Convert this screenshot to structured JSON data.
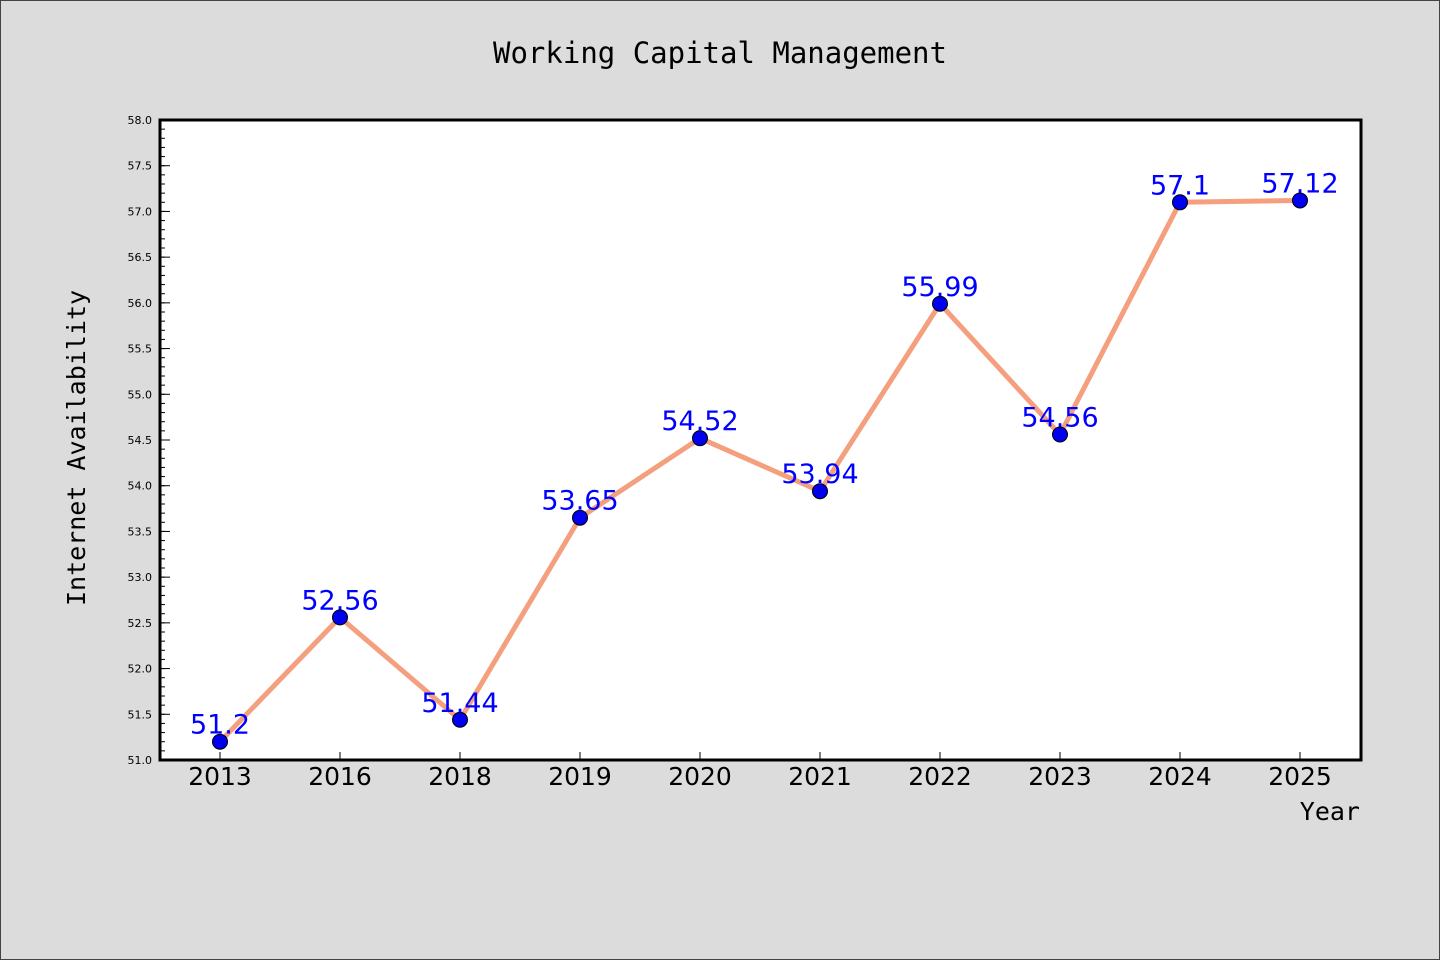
{
  "chart_data": {
    "type": "line",
    "title": "Working Capital Management",
    "xlabel": "Year",
    "ylabel": "Internet Availability",
    "categories": [
      "2013",
      "2016",
      "2018",
      "2019",
      "2020",
      "2021",
      "2022",
      "2023",
      "2024",
      "2025"
    ],
    "series": [
      {
        "values": [
          51.2,
          52.56,
          51.44,
          53.65,
          54.52,
          53.94,
          55.99,
          54.56,
          57.1,
          57.12
        ],
        "data_labels": [
          "51.2",
          "52.56",
          "51.44",
          "53.65",
          "54.52",
          "53.94",
          "55.99",
          "54.56",
          "57.1",
          "57.12"
        ]
      }
    ],
    "ylim": [
      51.0,
      58.0
    ],
    "y_major_ticks": [
      "51.0",
      "51.5",
      "52.0",
      "52.5",
      "53.0",
      "53.5",
      "54.0",
      "54.5",
      "55.0",
      "55.5",
      "56.0",
      "56.5",
      "57.0",
      "57.5",
      "58.0"
    ],
    "grid": false,
    "legend": "none",
    "colors": {
      "line": "#f4a07e",
      "marker": "#0000ee",
      "data_label": "#0000ff",
      "background": "#dcdcdc",
      "plot_background": "#ffffff"
    }
  }
}
